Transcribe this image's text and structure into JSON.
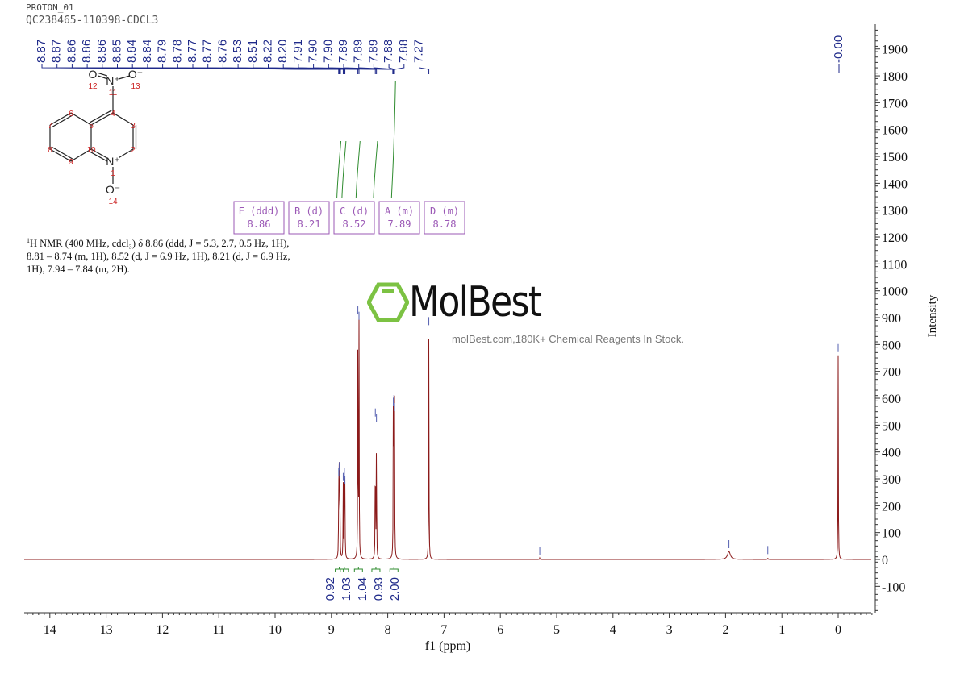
{
  "header": {
    "experiment": "PROTON_01",
    "sample": "QC238465-110398-CDCL3"
  },
  "description": {
    "nucleus_sup": "1",
    "text": "H NMR (400 MHz, cdcl₃) δ 8.86 (ddd, J = 5.3, 2.7, 0.5 Hz, 1H), 8.81 – 8.74 (m, 1H), 8.52 (d, J = 6.9 Hz, 1H), 8.21 (d, J = 6.9 Hz, 1H), 7.94 – 7.84 (m, 2H)."
  },
  "watermark": {
    "logo": "MolBest",
    "tagline": "molBest.com,180K+ Chemical Reagents In Stock."
  },
  "molecule": {
    "atoms": [
      {
        "el": "O",
        "num": "12"
      },
      {
        "el": "N⁺",
        "num": "11"
      },
      {
        "el": "O⁻",
        "num": "13"
      },
      {
        "el": "",
        "num": "4"
      },
      {
        "el": "",
        "num": "3"
      },
      {
        "el": "",
        "num": "2"
      },
      {
        "el": "N⁺",
        "num": "1"
      },
      {
        "el": "O⁻",
        "num": "14"
      },
      {
        "el": "",
        "num": "10"
      },
      {
        "el": "",
        "num": "5"
      },
      {
        "el": "",
        "num": "6"
      },
      {
        "el": "",
        "num": "7"
      },
      {
        "el": "",
        "num": "8"
      },
      {
        "el": "",
        "num": "9"
      }
    ],
    "atom_label_color": "#cc2222"
  },
  "chart_data": {
    "type": "line",
    "xlabel": "f1 (ppm)",
    "ylabel": "Intensity",
    "xlim": [
      14.45,
      -0.6
    ],
    "ylim": [
      -200,
      1980
    ],
    "x_reversed": true,
    "x_ticks": [
      14,
      13,
      12,
      11,
      10,
      9,
      8,
      7,
      6,
      5,
      4,
      3,
      2,
      1,
      0
    ],
    "y_ticks": [
      -100,
      0,
      100,
      200,
      300,
      400,
      500,
      600,
      700,
      800,
      900,
      1000,
      1100,
      1200,
      1300,
      1400,
      1500,
      1600,
      1700,
      1800,
      1900
    ],
    "y_axis_position": "right",
    "grid": false,
    "line_color": "#8b1a1a",
    "peaks": [
      {
        "ppm": 8.87,
        "intensity": 300
      },
      {
        "ppm": 8.86,
        "intensity": 320
      },
      {
        "ppm": 8.85,
        "intensity": 290
      },
      {
        "ppm": 8.79,
        "intensity": 280
      },
      {
        "ppm": 8.77,
        "intensity": 300
      },
      {
        "ppm": 8.76,
        "intensity": 270
      },
      {
        "ppm": 8.53,
        "intensity": 900
      },
      {
        "ppm": 8.51,
        "intensity": 880
      },
      {
        "ppm": 8.22,
        "intensity": 520
      },
      {
        "ppm": 8.2,
        "intensity": 500
      },
      {
        "ppm": 7.9,
        "intensity": 560
      },
      {
        "ppm": 7.89,
        "intensity": 570
      },
      {
        "ppm": 7.88,
        "intensity": 540
      },
      {
        "ppm": 7.27,
        "intensity": 860
      },
      {
        "ppm": 1.94,
        "intensity": 30
      },
      {
        "ppm": 1.25,
        "intensity": 8
      },
      {
        "ppm": 5.3,
        "intensity": 6
      },
      {
        "ppm": 0.0,
        "intensity": 760
      }
    ],
    "peak_labels": [
      "8.87",
      "8.87",
      "8.86",
      "8.86",
      "8.86",
      "8.85",
      "8.84",
      "8.84",
      "8.79",
      "8.78",
      "8.77",
      "8.77",
      "8.76",
      "8.53",
      "8.51",
      "8.22",
      "8.20",
      "7.91",
      "7.90",
      "7.90",
      "7.89",
      "7.89",
      "7.89",
      "7.88",
      "7.88",
      "7.27"
    ],
    "tms_label": "-0.00",
    "multiplets": [
      {
        "id": "E",
        "type": "(ddd)",
        "ppm": "8.86"
      },
      {
        "id": "B",
        "type": "(d)",
        "ppm": "8.21"
      },
      {
        "id": "C",
        "type": "(d)",
        "ppm": "8.52"
      },
      {
        "id": "A",
        "type": "(m)",
        "ppm": "7.89"
      },
      {
        "id": "D",
        "type": "(m)",
        "ppm": "8.78"
      }
    ],
    "integrals": [
      {
        "ppm": 8.86,
        "value": "0.92"
      },
      {
        "ppm": 8.77,
        "value": "1.03"
      },
      {
        "ppm": 8.52,
        "value": "1.04"
      },
      {
        "ppm": 8.21,
        "value": "0.93"
      },
      {
        "ppm": 7.89,
        "value": "2.00"
      }
    ],
    "colors": {
      "peak_label": "#1f2a8a",
      "integral": "#2e8b2e",
      "multiplet_box": "#9b59b6",
      "axis": "#333333"
    }
  }
}
